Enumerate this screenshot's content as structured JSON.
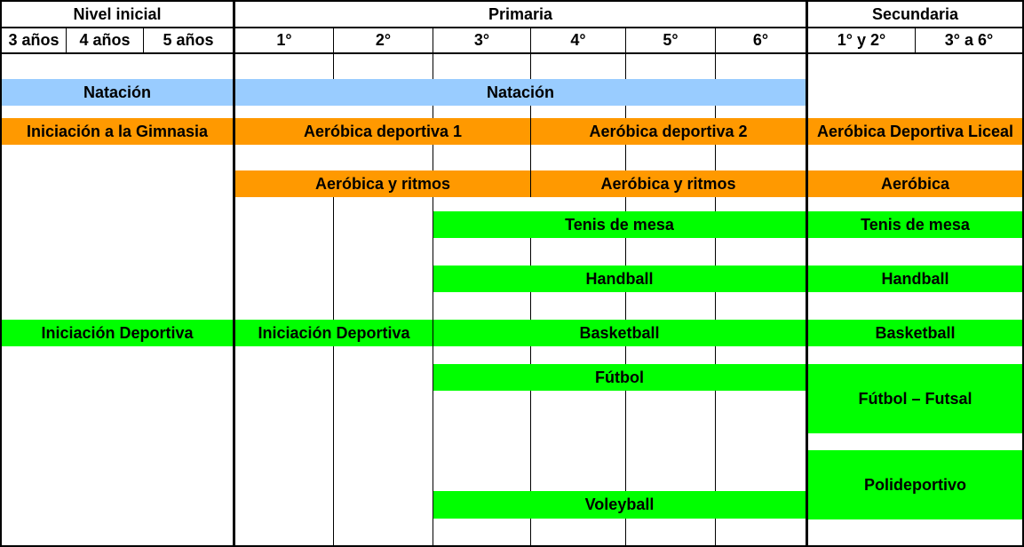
{
  "colors": {
    "natacion": "#99ccff",
    "aerobica": "#ff9900",
    "deportes": "#00ff00",
    "grid": "#000000"
  },
  "headers": {
    "levels": [
      "Nivel inicial",
      "Primaria",
      "Secundaria"
    ],
    "inicial": [
      "3 años",
      "4 años",
      "5 años"
    ],
    "primaria": [
      "1°",
      "2°",
      "3°",
      "4°",
      "5°",
      "6°"
    ],
    "secundaria": [
      "1° y 2°",
      "3° a 6°"
    ]
  },
  "activities": {
    "natacion_inicial": "Natación",
    "natacion_primaria": "Natación",
    "gimnasia_inicial": "Iniciación a la Gimnasia",
    "aerobica_dep_1": "Aeróbica deportiva 1",
    "aerobica_dep_2": "Aeróbica deportiva 2",
    "aerobica_liceal": "Aeróbica Deportiva Liceal",
    "aerobica_ritmos_1": "Aeróbica y ritmos",
    "aerobica_ritmos_2": "Aeróbica y ritmos",
    "aerobica_sec": "Aeróbica",
    "tenis_pri": "Tenis de mesa",
    "tenis_sec": "Tenis de mesa",
    "handball_pri": "Handball",
    "handball_sec": "Handball",
    "iniciacion_dep_inicial": "Iniciación Deportiva",
    "iniciacion_dep_pri": "Iniciación Deportiva",
    "basketball_pri": "Basketball",
    "basketball_sec": "Basketball",
    "futbol_pri": "Fútbol",
    "futbol_sec": "Fútbol – Futsal",
    "polideportivo": "Polideportivo",
    "voleyball": "Voleyball"
  }
}
